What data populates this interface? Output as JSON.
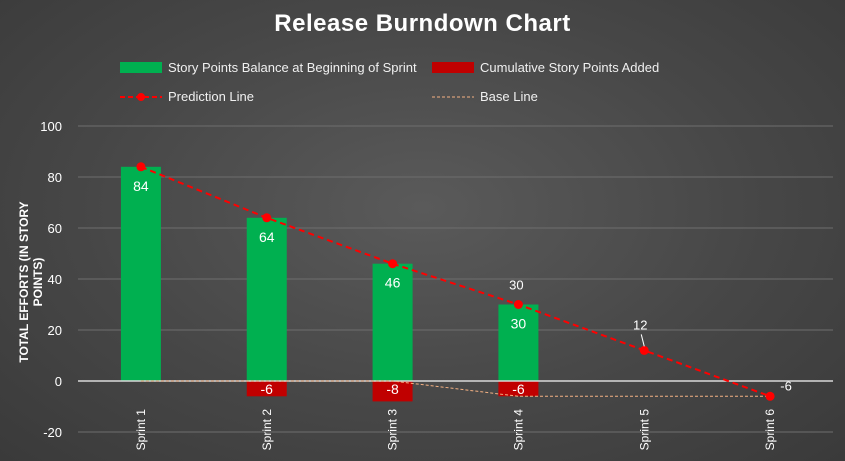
{
  "chart_data": {
    "type": "bar",
    "title": "Release Burndown Chart",
    "ylabel": "TOTAL EFFORTS (IN STORY POINTS)",
    "ylim": [
      -20,
      100
    ],
    "yticks": [
      -20,
      0,
      20,
      40,
      60,
      80,
      100
    ],
    "grid": true,
    "legend_position": "top",
    "categories": [
      "Sprint 1",
      "Sprint 2",
      "Sprint 3",
      "Sprint 4",
      "Sprint 5",
      "Sprint 6"
    ],
    "series": [
      {
        "name": "Story Points Balance at Beginning of Sprint",
        "type": "bar",
        "color": "#00b050",
        "values": [
          84,
          64,
          46,
          30,
          null,
          null
        ]
      },
      {
        "name": "Cumulative Story Points Added",
        "type": "bar",
        "color": "#c00000",
        "values": [
          0,
          -6,
          -8,
          -6,
          null,
          null
        ]
      },
      {
        "name": "Prediction Line",
        "type": "line",
        "style": "dashed",
        "marker": "circle",
        "color": "#ff0000",
        "values": [
          84,
          64,
          46,
          30,
          12,
          -6
        ]
      },
      {
        "name": "Base Line",
        "type": "line",
        "style": "dotted",
        "color": "#f4b183",
        "values": [
          0,
          0,
          0,
          -6,
          -6,
          -6
        ]
      }
    ],
    "data_labels": {
      "green": [
        "84",
        "64",
        "46",
        "30"
      ],
      "red": [
        "-6",
        "-8",
        "-6"
      ],
      "prediction": [
        "30",
        "12",
        "-6"
      ]
    }
  }
}
